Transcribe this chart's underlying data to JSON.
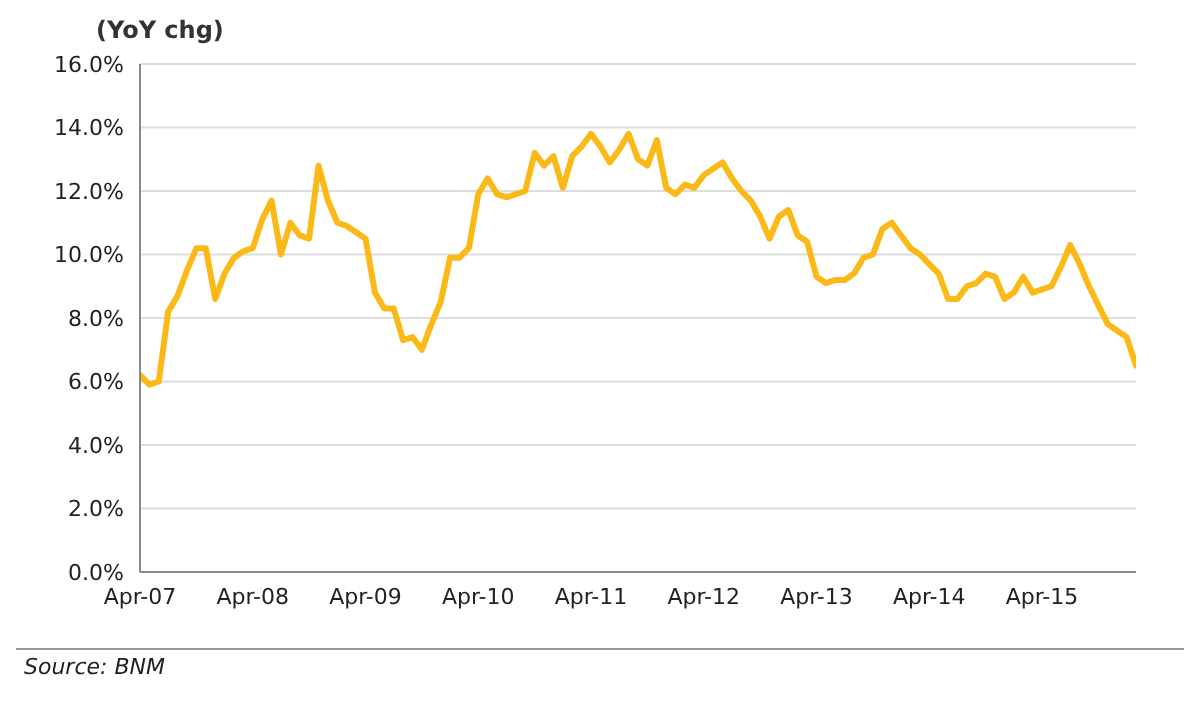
{
  "chart_data": {
    "type": "line",
    "ylabel": "(YoY chg)",
    "annotations": [
      "Source: BNM"
    ],
    "grid": "y",
    "color": "#fbb917",
    "x": [
      "2007-04",
      "2007-05",
      "2007-06",
      "2007-07",
      "2007-08",
      "2007-09",
      "2007-10",
      "2007-11",
      "2007-12",
      "2008-01",
      "2008-02",
      "2008-03",
      "2008-04",
      "2008-05",
      "2008-06",
      "2008-07",
      "2008-08",
      "2008-09",
      "2008-10",
      "2008-11",
      "2008-12",
      "2009-01",
      "2009-02",
      "2009-03",
      "2009-04",
      "2009-05",
      "2009-06",
      "2009-07",
      "2009-08",
      "2009-09",
      "2009-10",
      "2009-11",
      "2009-12",
      "2010-01",
      "2010-02",
      "2010-03",
      "2010-04",
      "2010-05",
      "2010-06",
      "2010-07",
      "2010-08",
      "2010-09",
      "2010-10",
      "2010-11",
      "2010-12",
      "2011-01",
      "2011-02",
      "2011-03",
      "2011-04",
      "2011-05",
      "2011-06",
      "2011-07",
      "2011-08",
      "2011-09",
      "2011-10",
      "2011-11",
      "2011-12",
      "2012-01",
      "2012-02",
      "2012-03",
      "2012-04",
      "2012-05",
      "2012-06",
      "2012-07",
      "2012-08",
      "2012-09",
      "2012-10",
      "2012-11",
      "2012-12",
      "2013-01",
      "2013-02",
      "2013-03",
      "2013-04",
      "2013-05",
      "2013-06",
      "2013-07",
      "2013-08",
      "2013-09",
      "2013-10",
      "2013-11",
      "2013-12",
      "2014-01",
      "2014-02",
      "2014-03",
      "2014-04",
      "2014-05",
      "2014-06",
      "2014-07",
      "2014-08",
      "2014-09",
      "2014-10",
      "2014-11",
      "2014-12",
      "2015-01",
      "2015-02",
      "2015-03",
      "2015-04",
      "2015-05",
      "2015-06",
      "2015-07",
      "2015-08",
      "2015-09",
      "2015-10",
      "2015-11",
      "2015-12",
      "2016-01",
      "2016-02"
    ],
    "values": [
      6.2,
      5.9,
      6.0,
      8.2,
      8.7,
      9.5,
      10.2,
      10.2,
      8.6,
      9.4,
      9.9,
      10.1,
      10.2,
      11.1,
      11.7,
      10.0,
      11.0,
      10.6,
      10.5,
      12.8,
      11.7,
      11.0,
      10.9,
      10.7,
      10.5,
      8.8,
      8.3,
      8.3,
      7.3,
      7.4,
      7.0,
      7.8,
      8.5,
      9.9,
      9.9,
      10.2,
      11.9,
      12.4,
      11.9,
      11.8,
      11.9,
      12.0,
      13.2,
      12.8,
      13.1,
      12.1,
      13.1,
      13.4,
      13.8,
      13.4,
      12.9,
      13.3,
      13.8,
      13.0,
      12.8,
      13.6,
      12.1,
      11.9,
      12.2,
      12.1,
      12.5,
      12.7,
      12.9,
      12.4,
      12.0,
      11.7,
      11.2,
      10.5,
      11.2,
      11.4,
      10.6,
      10.4,
      9.3,
      9.1,
      9.2,
      9.2,
      9.4,
      9.9,
      10.0,
      10.8,
      11.0,
      10.6,
      10.2,
      10.0,
      9.7,
      9.4,
      8.6,
      8.6,
      9.0,
      9.1,
      9.4,
      9.3,
      8.6,
      8.8,
      9.3,
      8.8,
      8.9,
      9.0,
      9.6,
      10.3,
      9.7,
      9.0,
      8.4,
      7.8,
      7.6,
      7.4,
      6.5
    ],
    "xlim": [
      "2007-04",
      "2016-02"
    ],
    "xticks": [
      {
        "value": "2007-04",
        "label": "Apr-07"
      },
      {
        "value": "2008-04",
        "label": "Apr-08"
      },
      {
        "value": "2009-04",
        "label": "Apr-09"
      },
      {
        "value": "2010-04",
        "label": "Apr-10"
      },
      {
        "value": "2011-04",
        "label": "Apr-11"
      },
      {
        "value": "2012-04",
        "label": "Apr-12"
      },
      {
        "value": "2013-04",
        "label": "Apr-13"
      },
      {
        "value": "2014-04",
        "label": "Apr-14"
      },
      {
        "value": "2015-04",
        "label": "Apr-15"
      }
    ],
    "ylim": [
      0,
      16
    ],
    "yticks": [
      {
        "value": 0,
        "label": "0.0%"
      },
      {
        "value": 2,
        "label": "2.0%"
      },
      {
        "value": 4,
        "label": "4.0%"
      },
      {
        "value": 6,
        "label": "6.0%"
      },
      {
        "value": 8,
        "label": "8.0%"
      },
      {
        "value": 10,
        "label": "10.0%"
      },
      {
        "value": 12,
        "label": "12.0%"
      },
      {
        "value": 14,
        "label": "14.0%"
      },
      {
        "value": 16,
        "label": "16.0%"
      }
    ]
  }
}
